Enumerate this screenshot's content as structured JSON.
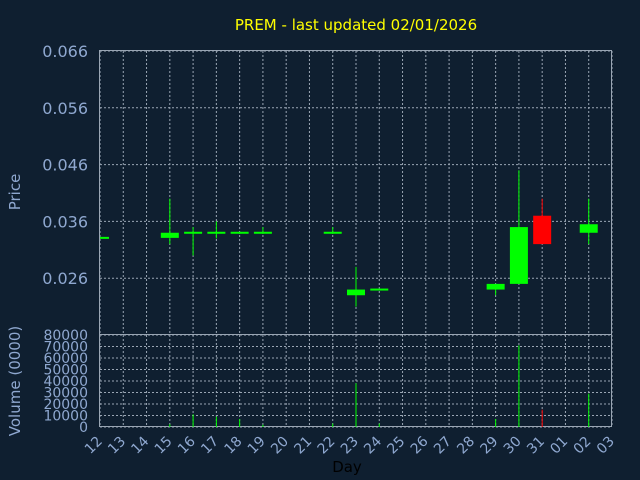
{
  "chart_data": {
    "type": "candlestick",
    "title": "PREM - last updated 02/01/2026",
    "price_axis": {
      "label": "Price",
      "ylim": [
        0.016,
        0.066
      ],
      "ticks": [
        "0.066",
        "0.056",
        "0.046",
        "0.036",
        "0.026"
      ],
      "tick_values": [
        0.066,
        0.056,
        0.046,
        0.036,
        0.026
      ],
      "grid": true
    },
    "volume_axis": {
      "label": "Volume (0000)",
      "ylim": [
        0,
        80000
      ],
      "ticks": [
        "80000",
        "70000",
        "60000",
        "50000",
        "40000",
        "30000",
        "20000",
        "10000",
        "0"
      ],
      "tick_values": [
        80000,
        70000,
        60000,
        50000,
        40000,
        30000,
        20000,
        10000,
        0
      ],
      "grid": true
    },
    "x_axis": {
      "label": "Day",
      "ticks": [
        "12",
        "13",
        "14",
        "15",
        "16",
        "17",
        "18",
        "19",
        "20",
        "21",
        "22",
        "23",
        "24",
        "25",
        "26",
        "27",
        "28",
        "29",
        "30",
        "31",
        "01",
        "02",
        "03"
      ]
    },
    "candles": [
      {
        "day": "12",
        "open": 0.0331,
        "high": 0.0331,
        "low": 0.0331,
        "close": 0.0331,
        "volume": 0
      },
      {
        "day": "15",
        "open": 0.0331,
        "high": 0.04,
        "low": 0.032,
        "close": 0.034,
        "volume": 2500
      },
      {
        "day": "16",
        "open": 0.0338,
        "high": 0.035,
        "low": 0.03,
        "close": 0.034,
        "volume": 11000
      },
      {
        "day": "17",
        "open": 0.0338,
        "high": 0.036,
        "low": 0.033,
        "close": 0.034,
        "volume": 9000
      },
      {
        "day": "18",
        "open": 0.0338,
        "high": 0.034,
        "low": 0.0338,
        "close": 0.034,
        "volume": 7000
      },
      {
        "day": "19",
        "open": 0.0338,
        "high": 0.035,
        "low": 0.0338,
        "close": 0.034,
        "volume": 2000
      },
      {
        "day": "22",
        "open": 0.0338,
        "high": 0.035,
        "low": 0.0338,
        "close": 0.034,
        "volume": 3000
      },
      {
        "day": "23",
        "open": 0.023,
        "high": 0.028,
        "low": 0.021,
        "close": 0.024,
        "volume": 38000
      },
      {
        "day": "24",
        "open": 0.0238,
        "high": 0.0238,
        "low": 0.0238,
        "close": 0.024,
        "volume": 3000
      },
      {
        "day": "29",
        "open": 0.024,
        "high": 0.025,
        "low": 0.023,
        "close": 0.025,
        "volume": 7000
      },
      {
        "day": "30",
        "open": 0.025,
        "high": 0.045,
        "low": 0.025,
        "close": 0.035,
        "volume": 71000
      },
      {
        "day": "31",
        "open": 0.037,
        "high": 0.04,
        "low": 0.032,
        "close": 0.032,
        "volume": 15000
      },
      {
        "day": "02",
        "open": 0.034,
        "high": 0.04,
        "low": 0.032,
        "close": 0.0355,
        "volume": 29000
      }
    ],
    "colors": {
      "up": "#00ff00",
      "down": "#ff0000",
      "title": "#ffff00",
      "axis_text": "#8fa8d0",
      "grid": "#9aa6b4",
      "background": "#0f1f30"
    }
  }
}
